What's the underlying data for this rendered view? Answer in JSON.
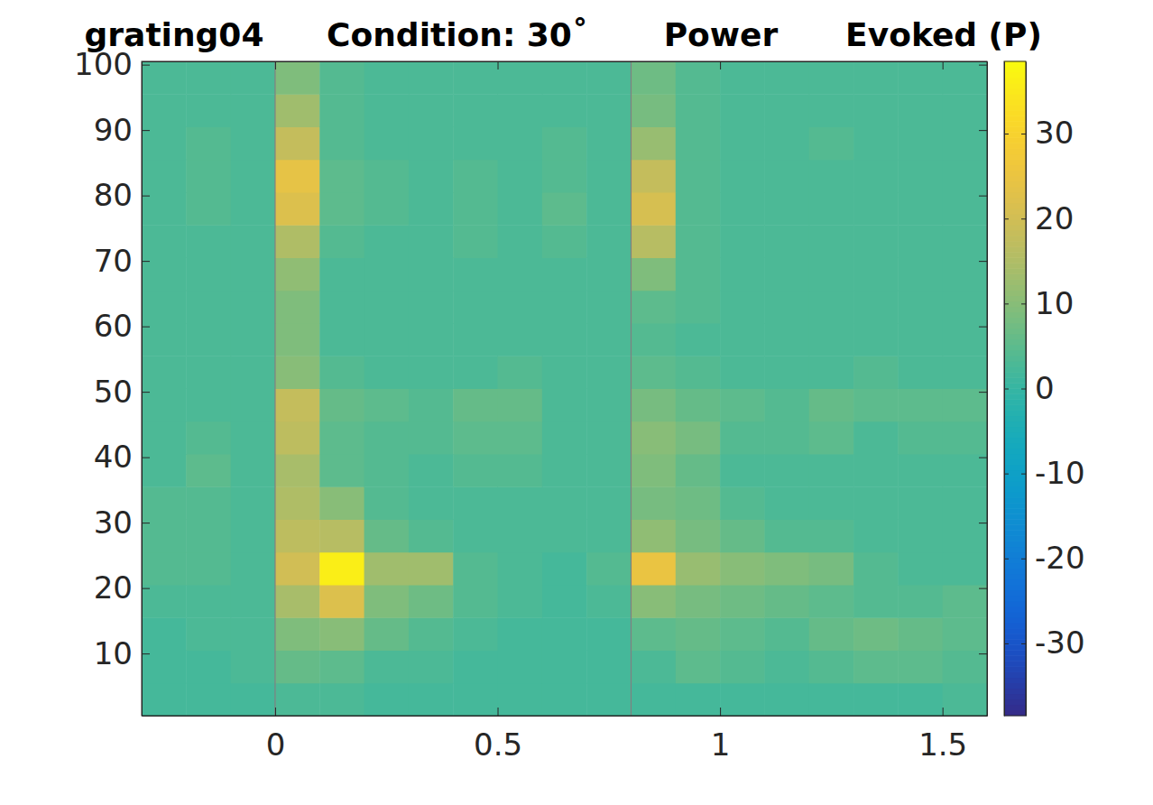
{
  "chart_data": {
    "type": "heatmap",
    "title": [
      "grating04",
      "Condition: 30˚",
      "Power",
      "Evoked (P)"
    ],
    "xlim": [
      -0.3,
      1.6
    ],
    "xticks": [
      0,
      0.5,
      1,
      1.5
    ],
    "ylim": [
      0.5,
      100.5
    ],
    "yticks": [
      10,
      20,
      30,
      40,
      50,
      60,
      70,
      80,
      90,
      100
    ],
    "x_edges": [
      -0.3,
      -0.2,
      -0.1,
      0,
      0.1,
      0.2,
      0.3,
      0.4,
      0.5,
      0.6,
      0.7,
      0.8,
      0.9,
      1,
      1.1,
      1.2,
      1.3,
      1.4,
      1.5,
      1.6
    ],
    "y_edges": [
      0.5,
      5.5,
      10.5,
      15.5,
      20.5,
      25.5,
      30.5,
      35.5,
      40.5,
      45.5,
      50.5,
      55.5,
      60.5,
      65.5,
      70.5,
      75.5,
      80.5,
      85.5,
      90.5,
      95.5,
      100.5
    ],
    "z": [
      [
        2,
        2,
        2,
        3,
        3,
        2,
        2,
        2,
        2,
        2,
        2,
        2,
        2,
        2,
        2,
        2,
        2,
        2,
        3
      ],
      [
        2,
        2,
        3,
        6,
        5,
        3,
        3,
        2,
        2,
        2,
        2,
        3,
        5,
        4,
        3,
        4,
        5,
        5,
        4
      ],
      [
        2,
        3,
        3,
        9,
        10,
        6,
        4,
        3,
        2,
        2,
        2,
        5,
        6,
        5,
        4,
        6,
        7,
        6,
        5
      ],
      [
        3,
        3,
        3,
        14,
        22,
        9,
        7,
        4,
        3,
        2,
        3,
        10,
        8,
        7,
        6,
        5,
        4,
        4,
        5
      ],
      [
        4,
        4,
        3,
        20,
        36,
        13,
        13,
        4,
        3,
        2,
        4,
        25,
        12,
        10,
        9,
        8,
        4,
        3,
        3
      ],
      [
        4,
        4,
        3,
        17,
        16,
        6,
        4,
        3,
        3,
        3,
        3,
        11,
        8,
        6,
        4,
        4,
        3,
        3,
        3
      ],
      [
        4,
        4,
        3,
        15,
        10,
        4,
        3,
        3,
        3,
        3,
        3,
        8,
        7,
        4,
        3,
        3,
        3,
        3,
        3
      ],
      [
        3,
        5,
        3,
        14,
        5,
        4,
        3,
        4,
        4,
        3,
        3,
        9,
        6,
        3,
        3,
        3,
        3,
        3,
        3
      ],
      [
        3,
        4,
        3,
        17,
        5,
        4,
        4,
        5,
        5,
        3,
        3,
        10,
        8,
        4,
        4,
        5,
        3,
        4,
        4
      ],
      [
        3,
        3,
        3,
        18,
        6,
        5,
        4,
        6,
        6,
        3,
        3,
        8,
        6,
        5,
        4,
        6,
        5,
        5,
        5
      ],
      [
        3,
        3,
        3,
        10,
        4,
        3,
        3,
        3,
        4,
        3,
        3,
        5,
        4,
        3,
        3,
        3,
        4,
        3,
        3
      ],
      [
        3,
        3,
        3,
        9,
        3,
        3,
        3,
        3,
        3,
        3,
        3,
        4,
        3,
        3,
        3,
        3,
        3,
        3,
        3
      ],
      [
        3,
        3,
        3,
        9,
        3,
        3,
        3,
        3,
        3,
        3,
        3,
        5,
        4,
        3,
        3,
        3,
        3,
        3,
        3
      ],
      [
        3,
        3,
        3,
        11,
        3,
        3,
        3,
        3,
        3,
        3,
        3,
        9,
        4,
        3,
        3,
        3,
        3,
        3,
        3
      ],
      [
        3,
        3,
        3,
        15,
        4,
        3,
        3,
        4,
        3,
        4,
        3,
        16,
        4,
        3,
        3,
        3,
        3,
        3,
        3
      ],
      [
        3,
        4,
        3,
        22,
        5,
        4,
        3,
        4,
        3,
        5,
        3,
        21,
        4,
        3,
        3,
        3,
        3,
        3,
        3
      ],
      [
        3,
        4,
        3,
        24,
        5,
        4,
        3,
        4,
        3,
        4,
        3,
        18,
        4,
        3,
        3,
        3,
        3,
        3,
        3
      ],
      [
        3,
        4,
        3,
        18,
        4,
        3,
        3,
        3,
        3,
        4,
        3,
        12,
        4,
        3,
        3,
        4,
        3,
        3,
        3
      ],
      [
        3,
        3,
        3,
        13,
        4,
        3,
        3,
        3,
        3,
        3,
        3,
        8,
        4,
        3,
        3,
        3,
        3,
        3,
        3
      ],
      [
        3,
        3,
        3,
        9,
        4,
        3,
        3,
        3,
        3,
        3,
        3,
        7,
        4,
        3,
        3,
        3,
        3,
        3,
        3
      ]
    ],
    "vlines": [
      0,
      0.8
    ],
    "clim": [
      -38.5,
      38.5
    ],
    "cticks": [
      -30,
      -20,
      -10,
      0,
      10,
      20,
      30
    ]
  }
}
